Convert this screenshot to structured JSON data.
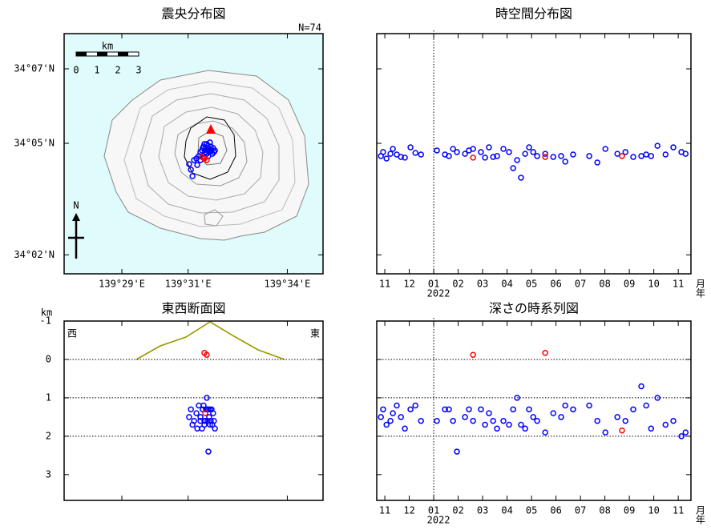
{
  "chart_data": [
    {
      "type": "map",
      "title": "震央分布図",
      "count_label": "N=74",
      "background": "#e0fbfb",
      "scale_bar": {
        "unit": "km",
        "labels": [
          0,
          1,
          2,
          3
        ]
      },
      "north_label": "N",
      "xlim": [
        139.4542,
        139.5847
      ],
      "ylim": [
        34.0248,
        34.1325
      ],
      "xticks": [
        {
          "value": 139.4833,
          "label": "139°29'E"
        },
        {
          "value": 139.5167,
          "label": "139°31'E"
        },
        {
          "value": 139.5667,
          "label": "139°34'E"
        }
      ],
      "yticks": [
        {
          "value": 34.1167,
          "label": "34°07'N"
        },
        {
          "value": 34.0833,
          "label": "34°05'N"
        },
        {
          "value": 34.0333,
          "label": "34°02'N"
        }
      ],
      "series": [
        {
          "color": "#0000ff",
          "x": [
            139.5172,
            139.5181,
            139.5189,
            139.5197,
            139.5209,
            139.5221,
            139.5229,
            139.5237,
            139.5241,
            139.5245,
            139.5249,
            139.5253,
            139.5257,
            139.5261,
            139.5265,
            139.5269,
            139.5273,
            139.5277,
            139.5281,
            139.5285,
            139.5289,
            139.5293,
            139.5297,
            139.5302,
            139.5229,
            139.5249,
            139.5269,
            139.5261,
            139.5277,
            139.5213
          ],
          "values": [
            34.074,
            34.0715,
            34.0686,
            34.0758,
            34.0765,
            34.0776,
            34.0794,
            34.0801,
            34.0812,
            34.0819,
            34.083,
            34.0808,
            34.0794,
            34.0786,
            34.0801,
            34.0812,
            34.0794,
            34.0804,
            34.0819,
            34.0801,
            34.0786,
            34.0812,
            34.0794,
            34.0801,
            34.0758,
            34.0772,
            34.0776,
            34.083,
            34.0837,
            34.0736
          ]
        },
        {
          "color": "#ff0000",
          "x": [
            139.5249,
            139.5261,
            139.5237
          ],
          "values": [
            34.0765,
            34.0758,
            34.0772
          ]
        }
      ]
    },
    {
      "type": "scatter",
      "title": "時空間分布図",
      "year_label": "2022",
      "year_at": 2,
      "x_unit": [
        "月",
        "年"
      ],
      "vline": 2,
      "xlim": [
        -0.33,
        12.52
      ],
      "ylim": [
        34.0248,
        34.1325
      ],
      "ytick_labels": false,
      "xticks": [
        {
          "value": 0,
          "label": "11"
        },
        {
          "value": 1,
          "label": "12"
        },
        {
          "value": 2,
          "label": "01"
        },
        {
          "value": 3,
          "label": "02"
        },
        {
          "value": 4,
          "label": "03"
        },
        {
          "value": 5,
          "label": "04"
        },
        {
          "value": 6,
          "label": "05"
        },
        {
          "value": 7,
          "label": "06"
        },
        {
          "value": 8,
          "label": "07"
        },
        {
          "value": 9,
          "label": "08"
        },
        {
          "value": 10,
          "label": "09"
        },
        {
          "value": 11,
          "label": "10"
        },
        {
          "value": 12,
          "label": "11"
        }
      ],
      "yticks": [
        34.1167,
        34.0833,
        34.0333
      ],
      "series": [
        {
          "color": "#0000ff",
          "x": [
            -0.16,
            -0.07,
            0.07,
            0.23,
            0.33,
            0.49,
            0.66,
            0.82,
            1.05,
            1.25,
            1.48,
            2.13,
            2.46,
            2.62,
            2.79,
            2.95,
            3.28,
            3.44,
            3.61,
            3.93,
            4.1,
            4.26,
            4.43,
            4.59,
            4.85,
            5.08,
            5.25,
            5.41,
            5.57,
            5.74,
            5.9,
            6.07,
            6.23,
            6.56,
            6.89,
            7.21,
            7.38,
            7.7,
            8.36,
            8.69,
            9.02,
            9.51,
            9.84,
            10.16,
            10.49,
            10.69,
            10.89,
            11.15,
            11.48,
            11.8,
            12.13,
            12.3
          ],
          "values": [
            34.0776,
            34.0794,
            34.0765,
            34.0786,
            34.0808,
            34.0783,
            34.0772,
            34.0769,
            34.0815,
            34.079,
            34.0783,
            34.0801,
            34.0783,
            34.0776,
            34.0808,
            34.0794,
            34.0786,
            34.0801,
            34.0808,
            34.0794,
            34.0769,
            34.0815,
            34.0772,
            34.0776,
            34.0808,
            34.0794,
            34.0722,
            34.0758,
            34.0679,
            34.0786,
            34.0815,
            34.0794,
            34.0776,
            34.0786,
            34.0772,
            34.0776,
            34.0751,
            34.0783,
            34.0776,
            34.0747,
            34.0808,
            34.0786,
            34.0794,
            34.0772,
            34.0776,
            34.0783,
            34.0776,
            34.0822,
            34.0783,
            34.0815,
            34.0794,
            34.0786
          ]
        },
        {
          "color": "#ff0000",
          "x": [
            3.61,
            6.56,
            9.7
          ],
          "values": [
            34.0769,
            34.0772,
            34.0776
          ]
        }
      ]
    },
    {
      "type": "scatter",
      "title": "東西断面図",
      "y_unit": "km",
      "west_label": "西",
      "east_label": "東",
      "y_inverted": true,
      "xlim": [
        139.4542,
        139.5847
      ],
      "ylim": [
        -1,
        3.67
      ],
      "xtick_labels": false,
      "xticks": [
        139.4833,
        139.5167,
        139.5667
      ],
      "yticks": [
        -1,
        0,
        1,
        2,
        3
      ],
      "ygrid": [
        0,
        1,
        2
      ],
      "series": [
        {
          "color": "#0000ff",
          "x": [
            139.5172,
            139.5181,
            139.5189,
            139.5197,
            139.5209,
            139.5221,
            139.5229,
            139.5237,
            139.5241,
            139.5245,
            139.5249,
            139.5253,
            139.5257,
            139.5261,
            139.5265,
            139.5269,
            139.5273,
            139.5277,
            139.5281,
            139.5285,
            139.5289,
            139.5293,
            139.5297,
            139.5302,
            139.5229,
            139.5249,
            139.5269,
            139.5261,
            139.5277,
            139.5213
          ],
          "values": [
            1.5,
            1.3,
            1.7,
            1.6,
            1.4,
            1.2,
            1.5,
            1.8,
            1.3,
            1.2,
            1.6,
            1.6,
            1.3,
            1.3,
            1.6,
            2.4,
            1.5,
            1.3,
            1.6,
            1.3,
            1.7,
            1.4,
            1.6,
            1.8,
            1.6,
            1.7,
            1.3,
            1.0,
            1.7,
            1.8
          ]
        },
        {
          "color": "#ff0000",
          "x": [
            139.5249,
            139.5261,
            139.5253
          ],
          "values": [
            -0.17,
            -0.12,
            1.4
          ]
        }
      ]
    },
    {
      "type": "scatter",
      "title": "深さの時系列図",
      "year_label": "2022",
      "year_at": 2,
      "x_unit": [
        "月",
        "年"
      ],
      "vline": 2,
      "y_inverted": true,
      "xlim": [
        -0.33,
        12.52
      ],
      "ylim": [
        -1,
        3.67
      ],
      "ytick_labels": false,
      "ygrid": [
        0,
        1,
        2
      ],
      "xticks": [
        {
          "value": 0,
          "label": "11"
        },
        {
          "value": 1,
          "label": "12"
        },
        {
          "value": 2,
          "label": "01"
        },
        {
          "value": 3,
          "label": "02"
        },
        {
          "value": 4,
          "label": "03"
        },
        {
          "value": 5,
          "label": "04"
        },
        {
          "value": 6,
          "label": "05"
        },
        {
          "value": 7,
          "label": "06"
        },
        {
          "value": 8,
          "label": "07"
        },
        {
          "value": 9,
          "label": "08"
        },
        {
          "value": 10,
          "label": "09"
        },
        {
          "value": 11,
          "label": "10"
        },
        {
          "value": 12,
          "label": "11"
        }
      ],
      "yticks": [
        -1,
        0,
        1,
        2,
        3
      ],
      "series": [
        {
          "color": "#0000ff",
          "x": [
            -0.16,
            -0.07,
            0.07,
            0.23,
            0.33,
            0.49,
            0.66,
            0.82,
            1.05,
            1.25,
            1.48,
            2.13,
            2.46,
            2.62,
            2.79,
            2.95,
            3.28,
            3.44,
            3.61,
            3.93,
            4.1,
            4.26,
            4.43,
            4.59,
            4.85,
            5.08,
            5.25,
            5.41,
            5.57,
            5.74,
            5.9,
            6.07,
            6.23,
            6.56,
            6.89,
            7.21,
            7.38,
            7.7,
            8.36,
            8.69,
            9.02,
            9.51,
            9.84,
            10.16,
            10.49,
            10.69,
            10.89,
            11.15,
            11.48,
            11.8,
            12.13,
            12.3
          ],
          "values": [
            1.5,
            1.3,
            1.7,
            1.6,
            1.4,
            1.2,
            1.5,
            1.8,
            1.3,
            1.2,
            1.6,
            1.6,
            1.3,
            1.3,
            1.6,
            2.4,
            1.5,
            1.3,
            1.6,
            1.3,
            1.7,
            1.4,
            1.6,
            1.8,
            1.6,
            1.7,
            1.3,
            1.0,
            1.7,
            1.8,
            1.3,
            1.5,
            1.6,
            1.9,
            1.4,
            1.5,
            1.2,
            1.3,
            1.2,
            1.6,
            1.9,
            1.5,
            1.6,
            1.3,
            0.7,
            1.2,
            1.8,
            1.0,
            1.7,
            1.6,
            2.0,
            1.9
          ]
        },
        {
          "color": "#ff0000",
          "x": [
            3.61,
            6.56,
            9.7
          ],
          "values": [
            -0.12,
            -0.17,
            1.85
          ]
        }
      ]
    }
  ]
}
